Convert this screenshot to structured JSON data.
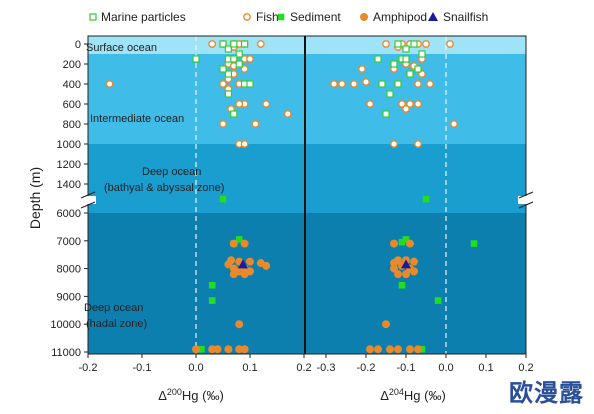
{
  "chart_data": {
    "type": "scatter",
    "legend": {
      "placement": "top",
      "items": [
        {
          "name": "Marine particles",
          "marker": "open-square",
          "color": "#33cc33"
        },
        {
          "name": "Fish",
          "marker": "open-circle",
          "color": "#e8892b"
        },
        {
          "name": "Sediment",
          "marker": "filled-square",
          "color": "#22dd22"
        },
        {
          "name": "Amphipod",
          "marker": "filled-circle",
          "color": "#e8892b"
        },
        {
          "name": "Snailfish",
          "marker": "filled-triangle",
          "color": "#1a1aa0"
        }
      ]
    },
    "ylabel": "Depth (m)",
    "y_tick_labels_upper": [
      "0",
      "200",
      "400",
      "600",
      "800",
      "1000",
      "1200",
      "1400"
    ],
    "y_tick_labels_lower": [
      "6000",
      "7000",
      "8000",
      "9000",
      "10000",
      "11000"
    ],
    "y_upper_range": [
      0,
      1550
    ],
    "y_lower_range": [
      5550,
      11000
    ],
    "panels": [
      {
        "xlabel_pre": "Δ",
        "xlabel_sup": "200",
        "xlabel_post": "Hg (‰)",
        "xlim": [
          -0.2,
          0.2
        ],
        "x_tick_labels": [
          "-0.2",
          "-0.1",
          "0.0",
          "0.1",
          "0.2"
        ],
        "x_ticks": [
          -0.2,
          -0.1,
          0.0,
          0.1,
          0.2
        ],
        "series": {
          "marine_particles": [
            [
              0.05,
              0
            ],
            [
              0.06,
              50
            ],
            [
              0.07,
              0
            ],
            [
              0.08,
              100
            ],
            [
              0.09,
              0
            ],
            [
              0.0,
              150
            ],
            [
              0.06,
              150
            ],
            [
              0.07,
              150
            ],
            [
              0.08,
              200
            ],
            [
              0.06,
              300
            ],
            [
              0.05,
              250
            ],
            [
              0.09,
              400
            ],
            [
              0.06,
              500
            ],
            [
              0.07,
              700
            ],
            [
              0.1,
              400
            ]
          ],
          "fish": [
            [
              0.03,
              0
            ],
            [
              0.05,
              0
            ],
            [
              0.07,
              0
            ],
            [
              0.08,
              0
            ],
            [
              0.09,
              0
            ],
            [
              0.12,
              0
            ],
            [
              0.07,
              30
            ],
            [
              0.09,
              150
            ],
            [
              0.06,
              200
            ],
            [
              0.07,
              220
            ],
            [
              0.09,
              250
            ],
            [
              0.07,
              300
            ],
            [
              0.05,
              400
            ],
            [
              0.08,
              400
            ],
            [
              0.06,
              450
            ],
            [
              0.09,
              600
            ],
            [
              0.08,
              600
            ],
            [
              0.065,
              650
            ],
            [
              0.06,
              500
            ],
            [
              -0.16,
              400
            ],
            [
              0.17,
              700
            ],
            [
              0.13,
              600
            ],
            [
              0.11,
              800
            ],
            [
              0.05,
              800
            ],
            [
              0.08,
              1000
            ],
            [
              0.09,
              1000
            ],
            [
              0.06,
              350
            ],
            [
              0.1,
              150
            ]
          ],
          "sediment": [
            [
              0.05,
              5500
            ],
            [
              0.08,
              6950
            ],
            [
              0.07,
              7100
            ],
            [
              0.03,
              8600
            ],
            [
              0.03,
              9150
            ],
            [
              0.01,
              10900
            ]
          ],
          "amphipod": [
            [
              0.07,
              7100
            ],
            [
              0.09,
              7100
            ],
            [
              0.065,
              7700
            ],
            [
              0.08,
              7750
            ],
            [
              0.1,
              7750
            ],
            [
              0.12,
              7800
            ],
            [
              0.13,
              7900
            ],
            [
              0.09,
              8000
            ],
            [
              0.07,
              8000
            ],
            [
              0.06,
              7850
            ],
            [
              0.08,
              8100
            ],
            [
              0.09,
              8200
            ],
            [
              0.07,
              8200
            ],
            [
              0.1,
              8100
            ],
            [
              0.08,
              10000
            ],
            [
              0.06,
              10900
            ],
            [
              0.08,
              10900
            ],
            [
              0.09,
              10900
            ],
            [
              0.04,
              10900
            ],
            [
              0.03,
              10900
            ],
            [
              0.0,
              10900
            ]
          ],
          "snailfish": [
            [
              0.087,
              7850
            ]
          ]
        }
      },
      {
        "xlabel_pre": "Δ",
        "xlabel_sup": "204",
        "xlabel_post": "Hg (‰)",
        "xlim": [
          -0.35,
          0.2
        ],
        "x_tick_labels": [
          "-0.3",
          "-0.2",
          "-0.1",
          "0.0",
          "0.1",
          "0.2"
        ],
        "x_ticks": [
          -0.3,
          -0.2,
          -0.1,
          0.0,
          0.1,
          0.2
        ],
        "series": {
          "marine_particles": [
            [
              -0.12,
              0
            ],
            [
              -0.1,
              50
            ],
            [
              -0.08,
              0
            ],
            [
              -0.06,
              100
            ],
            [
              -0.11,
              150
            ],
            [
              -0.17,
              150
            ],
            [
              -0.13,
              200
            ],
            [
              -0.09,
              300
            ],
            [
              -0.07,
              250
            ],
            [
              -0.12,
              400
            ],
            [
              -0.14,
              500
            ],
            [
              -0.16,
              400
            ],
            [
              -0.15,
              700
            ],
            [
              -0.1,
              150
            ]
          ],
          "fish": [
            [
              -0.15,
              0
            ],
            [
              -0.11,
              0
            ],
            [
              -0.09,
              0
            ],
            [
              -0.07,
              0
            ],
            [
              -0.05,
              0
            ],
            [
              0.01,
              0
            ],
            [
              -0.12,
              30
            ],
            [
              -0.06,
              150
            ],
            [
              -0.1,
              200
            ],
            [
              -0.08,
              220
            ],
            [
              -0.13,
              250
            ],
            [
              -0.21,
              250
            ],
            [
              -0.09,
              300
            ],
            [
              -0.28,
              400
            ],
            [
              -0.26,
              400
            ],
            [
              -0.23,
              400
            ],
            [
              -0.2,
              380
            ],
            [
              -0.12,
              400
            ],
            [
              -0.07,
              400
            ],
            [
              -0.04,
              400
            ],
            [
              -0.09,
              600
            ],
            [
              -0.11,
              600
            ],
            [
              -0.07,
              600
            ],
            [
              -0.1,
              650
            ],
            [
              -0.19,
              600
            ],
            [
              0.02,
              800
            ],
            [
              -0.07,
              1000
            ],
            [
              -0.13,
              1000
            ],
            [
              -0.06,
              300
            ]
          ],
          "sediment": [
            [
              -0.05,
              5500
            ],
            [
              -0.1,
              6950
            ],
            [
              -0.11,
              7050
            ],
            [
              0.07,
              7100
            ],
            [
              -0.11,
              8600
            ],
            [
              -0.02,
              9150
            ],
            [
              -0.06,
              10900
            ]
          ],
          "amphipod": [
            [
              -0.13,
              7100
            ],
            [
              -0.09,
              7100
            ],
            [
              -0.12,
              7700
            ],
            [
              -0.1,
              7700
            ],
            [
              -0.08,
              7750
            ],
            [
              -0.13,
              7800
            ],
            [
              -0.11,
              7900
            ],
            [
              -0.09,
              8000
            ],
            [
              -0.13,
              8000
            ],
            [
              -0.08,
              8100
            ],
            [
              -0.12,
              8200
            ],
            [
              -0.1,
              8200
            ],
            [
              -0.15,
              10000
            ],
            [
              -0.19,
              10900
            ],
            [
              -0.17,
              10900
            ],
            [
              -0.14,
              10900
            ],
            [
              -0.12,
              10900
            ],
            [
              -0.09,
              10900
            ],
            [
              -0.07,
              10900
            ]
          ],
          "snailfish": [
            [
              -0.1,
              7850
            ]
          ]
        }
      }
    ],
    "zones": [
      {
        "name": "Surface ocean",
        "range": [
          -30,
          100
        ],
        "color": "#9fe3f7"
      },
      {
        "name": "Intermediate ocean",
        "range": [
          100,
          1000
        ],
        "color": "#3fbde8"
      },
      {
        "name": "Deep ocean\n(bathyal & abyssal zone)",
        "range": [
          1000,
          6000
        ],
        "color": "#1a9dcf"
      },
      {
        "name": "Deep ocean\n(hadal zone)",
        "range": [
          6000,
          11000
        ],
        "color": "#0c7fae"
      }
    ],
    "zone_labels": [
      "Surface ocean",
      "Intermediate ocean",
      "Deep ocean",
      "(bathyal & abyssal zone)",
      "Deep ocean",
      "(hadal zone)"
    ]
  },
  "watermark": "欧漫露"
}
